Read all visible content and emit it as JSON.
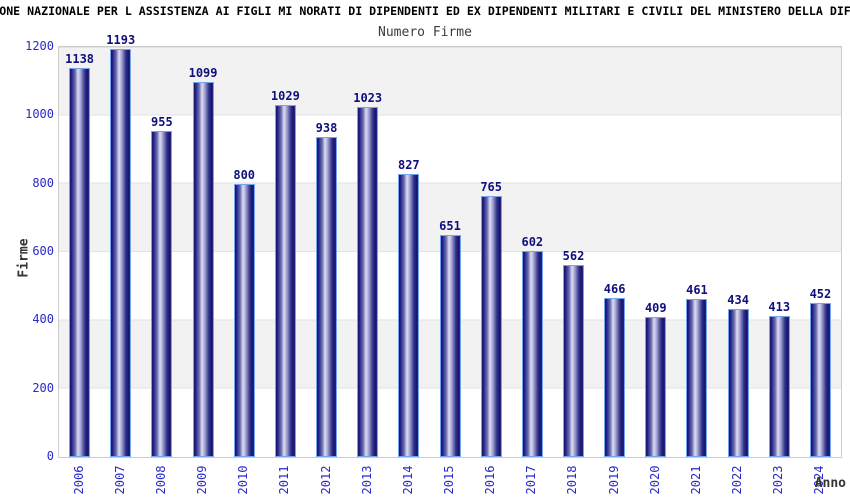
{
  "header": {
    "title": "ONE NAZIONALE PER L ASSISTENZA AI FIGLI MI NORATI DI DIPENDENTI ED EX DIPENDENTI MILITARI E CIVILI DEL MINISTERO DELLA DIF",
    "subtitle": "Numero Firme"
  },
  "chart_data": {
    "type": "bar",
    "title": "Numero Firme",
    "categories": [
      "2006",
      "2007",
      "2008",
      "2009",
      "2010",
      "2011",
      "2012",
      "2013",
      "2014",
      "2015",
      "2016",
      "2017",
      "2018",
      "2019",
      "2020",
      "2021",
      "2022",
      "2023",
      "2024"
    ],
    "values": [
      1138,
      1193,
      955,
      1099,
      800,
      1029,
      938,
      1023,
      827,
      651,
      765,
      602,
      562,
      466,
      409,
      461,
      434,
      413,
      452
    ],
    "xlabel": "Anno",
    "ylabel": "Firme",
    "ylim": [
      0,
      1200
    ],
    "yticks": [
      0,
      200,
      400,
      600,
      800,
      1000,
      1200
    ],
    "grid": "alternating gray/white horizontal bands every 200 units",
    "legend_position": "none",
    "value_labels_shown": true
  },
  "colors": {
    "bar_dark": "#15156b",
    "bar_highlight": "#dedef2",
    "bar_border": "#74a4ee",
    "value_label": "#0f0f7d",
    "axis_tick_label": "#2929cc",
    "axis_title": "#333333",
    "title_text": "#000000",
    "subtitle_text": "#3d3d3d",
    "band_gray": "#f2f2f2",
    "plot_border": "#cccccc"
  }
}
